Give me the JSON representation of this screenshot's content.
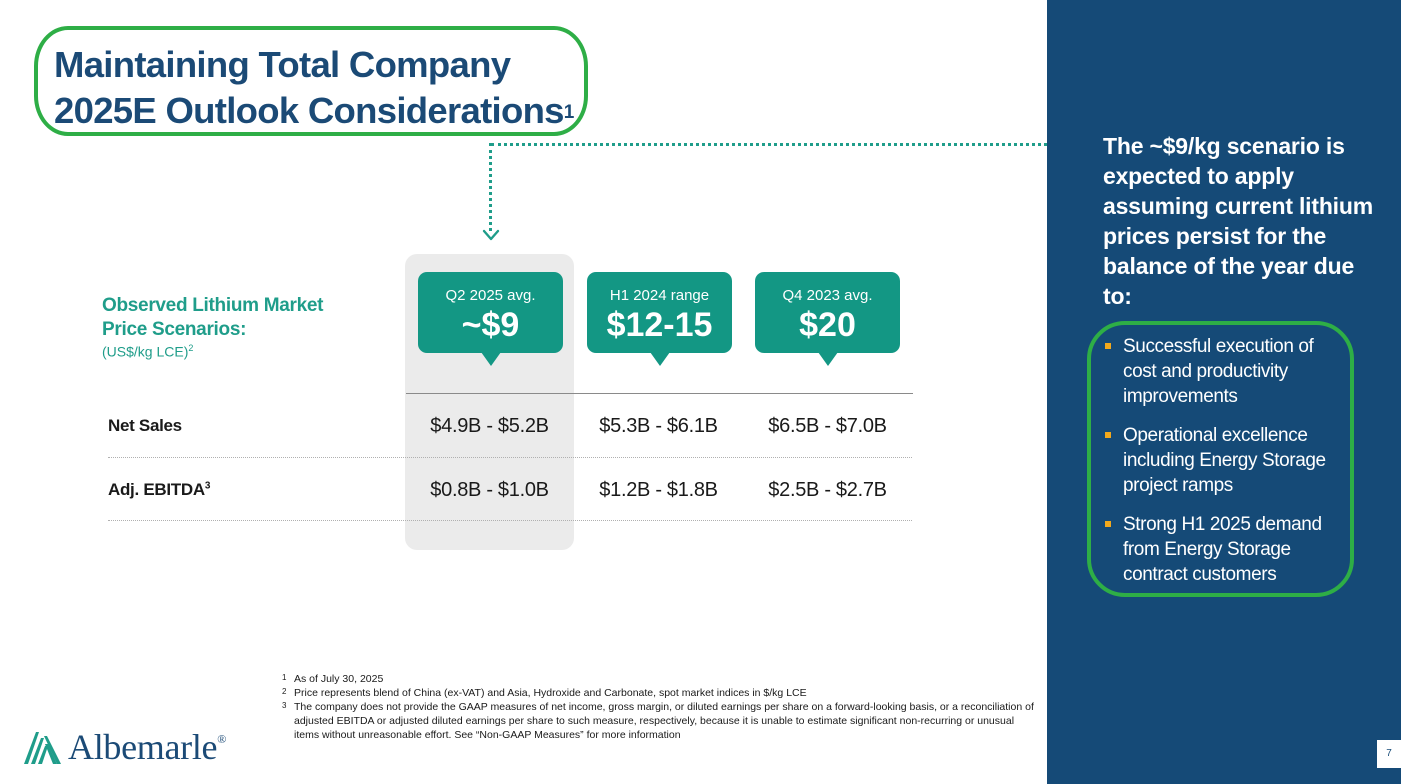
{
  "title": {
    "line1": "Maintaining Total Company",
    "line2": "2025E Outlook Considerations",
    "sup": "1"
  },
  "scenario": {
    "title_line1": "Observed Lithium Market",
    "title_line2": "Price Scenarios:",
    "unit": "(US$/kg LCE)",
    "unit_sup": "2"
  },
  "columns": [
    {
      "label": "Q2 2025 avg.",
      "value": "~$9"
    },
    {
      "label": "H1 2024 range",
      "value": "$12-15"
    },
    {
      "label": "Q4 2023 avg.",
      "value": "$20"
    }
  ],
  "rows": [
    {
      "label": "Net Sales",
      "sup": "",
      "values": [
        "$4.9B - $5.2B",
        "$5.3B - $6.1B",
        "$6.5B - $7.0B"
      ]
    },
    {
      "label": "Adj. EBITDA",
      "sup": "3",
      "values": [
        "$0.8B - $1.0B",
        "$1.2B - $1.8B",
        "$2.5B - $2.7B"
      ]
    }
  ],
  "panel": {
    "heading": "The ~$9/kg scenario is expected to apply assuming current lithium prices persist for the balance of the year due to:",
    "bullets": [
      "Successful execution of cost and productivity improvements",
      "Operational excellence including Energy Storage project ramps",
      "Strong H1 2025 demand from Energy Storage contract customers"
    ],
    "page_number": "7"
  },
  "footnotes": [
    {
      "num": "1",
      "text": "As of July 30, 2025"
    },
    {
      "num": "2",
      "text": "Price represents blend of China (ex-VAT) and Asia, Hydroxide and Carbonate, spot market indices in $/kg LCE"
    },
    {
      "num": "3",
      "text": "The company does not provide the GAAP measures of net income, gross margin, or diluted earnings per share on a forward-looking basis, or a reconciliation of adjusted EBITDA or adjusted diluted earnings per share to such measure, respectively, because it is unable to estimate significant non-recurring or unusual items without unreasonable effort. See “Non-GAAP Measures” for more information"
    }
  ],
  "logo": {
    "name": "Albemarle",
    "mark": "®",
    "icon": "albemarle-logo-icon"
  },
  "colors": {
    "navy": "#154a77",
    "title": "#1b4a76",
    "teal": "#139784",
    "green_outline": "#2eae46",
    "bullet": "#f2a91d",
    "highlight": "#ebebeb"
  }
}
